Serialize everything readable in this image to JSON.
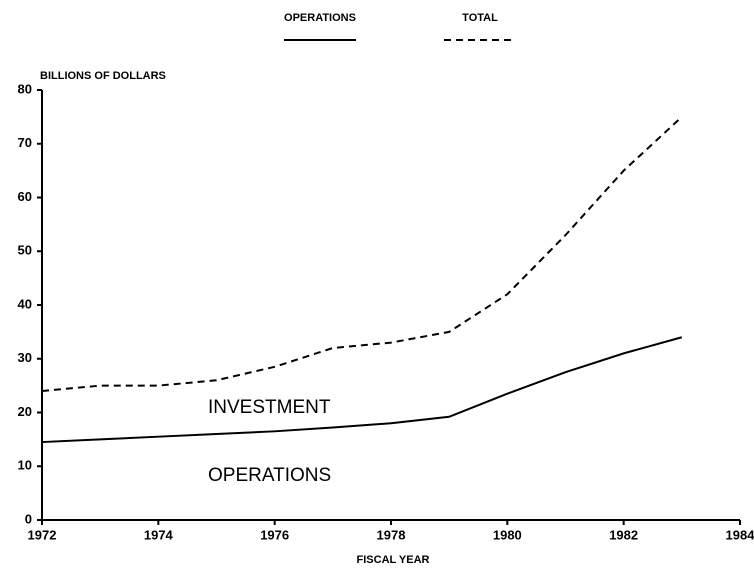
{
  "chart_data": {
    "type": "line",
    "ylabel": "BILLIONS OF DOLLARS",
    "xlabel": "FISCAL YEAR",
    "annotations": [
      "INVESTMENT",
      "OPERATIONS"
    ],
    "x": [
      1972,
      1973,
      1974,
      1975,
      1976,
      1977,
      1978,
      1979,
      1980,
      1981,
      1982,
      1983
    ],
    "series": [
      {
        "name": "OPERATIONS",
        "color": "#000000",
        "dash": "solid",
        "values": [
          14.5,
          15,
          15.5,
          16,
          16.5,
          17.2,
          18,
          19.2,
          23.5,
          27.5,
          31,
          34
        ]
      },
      {
        "name": "TOTAL",
        "color": "#000000",
        "dash": "dashed",
        "values": [
          24,
          25,
          25,
          26,
          28.5,
          32,
          33,
          35,
          42,
          53,
          65,
          75
        ]
      }
    ],
    "xlim": [
      1972,
      1984
    ],
    "xticks": [
      1972,
      1974,
      1976,
      1978,
      1980,
      1982,
      1984
    ],
    "ylim": [
      0,
      80
    ],
    "yticks": [
      0,
      10,
      20,
      30,
      40,
      50,
      60,
      70,
      80
    ],
    "grid": false
  }
}
